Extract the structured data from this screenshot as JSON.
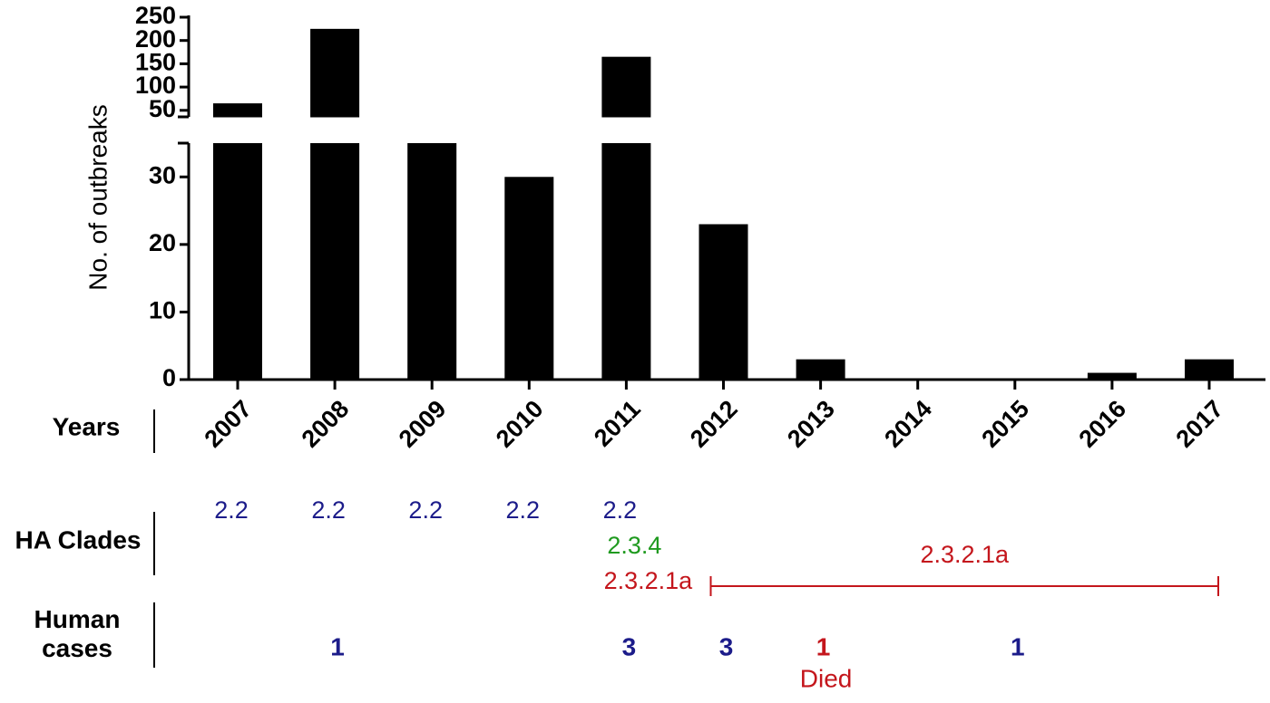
{
  "chart_data": {
    "type": "bar",
    "y_label": "No. of outbreaks",
    "x_label": "Years",
    "categories": [
      "2007",
      "2008",
      "2009",
      "2010",
      "2011",
      "2012",
      "2013",
      "2014",
      "2015",
      "2016",
      "2017"
    ],
    "values": [
      65,
      225,
      35,
      30,
      165,
      23,
      3,
      0,
      0,
      1,
      3
    ],
    "color": "#000000",
    "y_segments": [
      {
        "ylim": [
          0,
          35
        ],
        "yticks": [
          0,
          10,
          20,
          30
        ]
      },
      {
        "ylim": [
          35,
          250
        ],
        "yticks": [
          50,
          100,
          150,
          200,
          250
        ]
      }
    ],
    "ha_clades_label": "HA Clades",
    "ha_clades": [
      [
        {
          "label": "2.2",
          "color": "#1c1c8a"
        }
      ],
      [
        {
          "label": "2.2",
          "color": "#1c1c8a"
        }
      ],
      [
        {
          "label": "2.2",
          "color": "#1c1c8a"
        }
      ],
      [
        {
          "label": "2.2",
          "color": "#1c1c8a"
        }
      ],
      [
        {
          "label": "2.2",
          "color": "#1c1c8a"
        },
        {
          "label": "2.3.4",
          "color": "#1f9a1f"
        },
        {
          "label": "2.3.2.1a",
          "color": "#c4161c"
        }
      ],
      [],
      [],
      [],
      [],
      [],
      []
    ],
    "ha_clade_range": {
      "label": "2.3.2.1a",
      "color": "#c4161c",
      "from": "2012",
      "to": "2017"
    },
    "human_cases": {
      "label": "Human cases",
      "values": [
        null,
        1,
        null,
        null,
        3,
        3,
        1,
        null,
        1,
        null,
        null
      ],
      "colors": [
        "#1c1c8a",
        "#1c1c8a",
        "#1c1c8a",
        "#1c1c8a",
        "#1c1c8a",
        "#1c1c8a",
        "#c4161c",
        "#1c1c8a",
        "#1c1c8a",
        "#1c1c8a",
        "#1c1c8a"
      ],
      "note": "Died",
      "note_category": "2013",
      "note_color": "#c4161c"
    }
  }
}
